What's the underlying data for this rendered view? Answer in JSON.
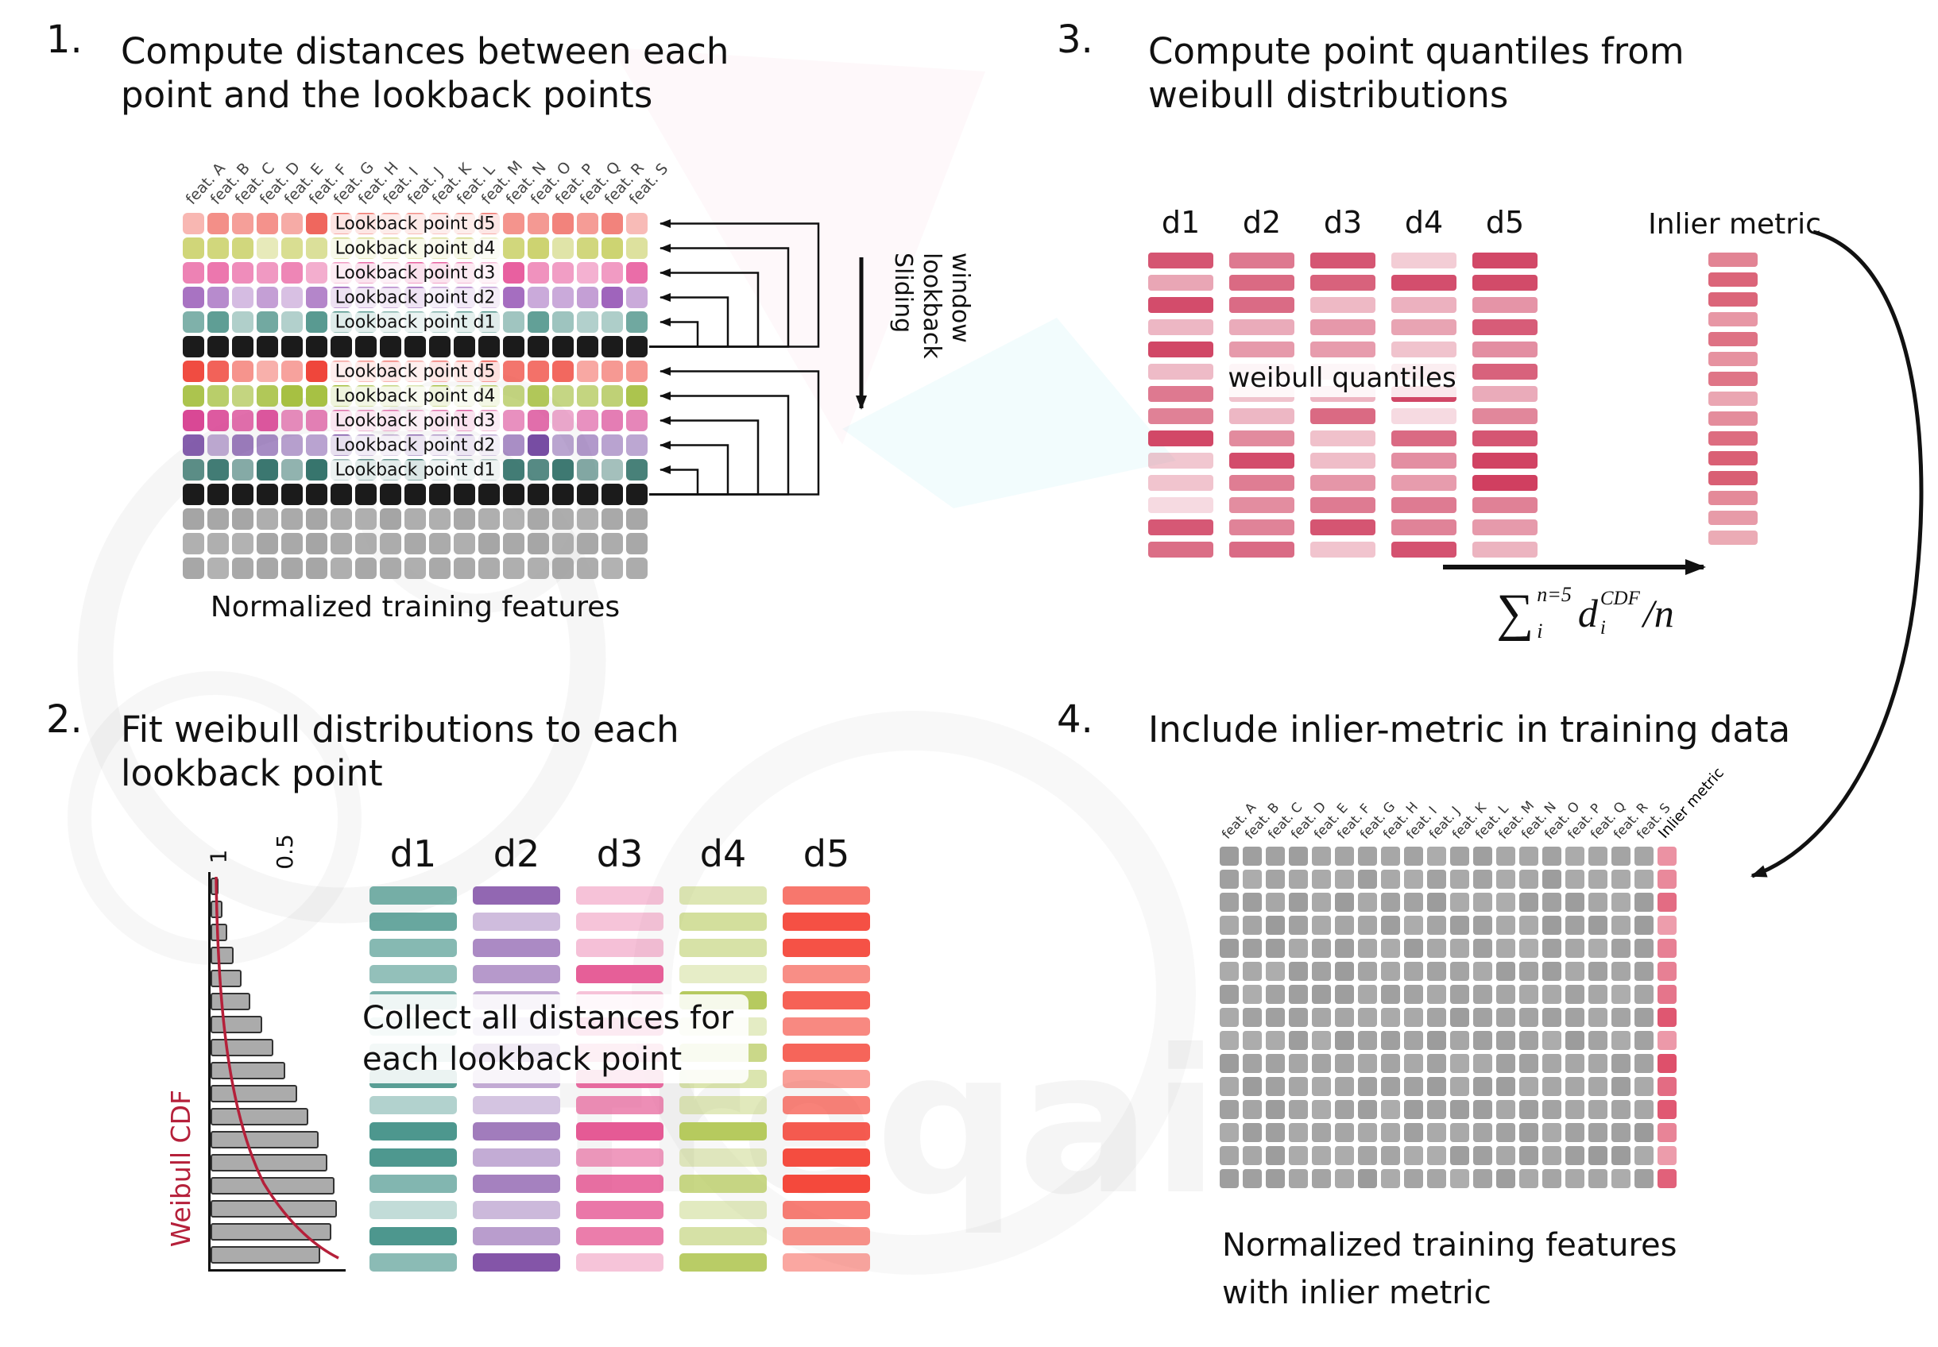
{
  "watermark_text": "freqai",
  "features": [
    "feat. A",
    "feat. B",
    "feat. C",
    "feat. D",
    "feat. E",
    "feat. F",
    "feat. G",
    "feat. H",
    "feat. I",
    "feat. J",
    "feat. K",
    "feat. L",
    "feat. M",
    "feat. N",
    "feat. O",
    "feat. P",
    "feat. Q",
    "feat. R",
    "feat. S"
  ],
  "panel1": {
    "number": "1.",
    "title": "Compute distances between each point and the lookback points",
    "caption": "Normalized training features",
    "sliding_label": "Sliding lookback window",
    "rows": [
      {
        "label": "Lookback point d5",
        "color": "#ee5a50",
        "type": "lookback"
      },
      {
        "label": "Lookback point d4",
        "color": "#c9d066",
        "type": "lookback"
      },
      {
        "label": "Lookback point d3",
        "color": "#e85d9e",
        "type": "lookback"
      },
      {
        "label": "Lookback point d2",
        "color": "#9a5cb8",
        "type": "lookback"
      },
      {
        "label": "Lookback point d1",
        "color": "#4f948a",
        "type": "lookback"
      },
      {
        "label": "",
        "color": "#1b1b1b",
        "type": "current"
      },
      {
        "label": "Lookback point d5",
        "color": "#ef4237",
        "type": "lookback"
      },
      {
        "label": "Lookback point d4",
        "color": "#a2bd38",
        "type": "lookback"
      },
      {
        "label": "Lookback point d3",
        "color": "#d84292",
        "type": "lookback"
      },
      {
        "label": "Lookback point d2",
        "color": "#6d3f9c",
        "type": "lookback"
      },
      {
        "label": "Lookback point d1",
        "color": "#2f6f67",
        "type": "lookback"
      },
      {
        "label": "",
        "color": "#1b1b1b",
        "type": "current"
      },
      {
        "label": "",
        "color": "#a4a4a4",
        "type": "plain"
      },
      {
        "label": "",
        "color": "#a4a4a4",
        "type": "plain"
      },
      {
        "label": "",
        "color": "#a4a4a4",
        "type": "plain"
      }
    ]
  },
  "panel2": {
    "number": "2.",
    "title": "Fit weibull distributions to each lookback point",
    "overlay": "Collect all distances for each lookback point",
    "plot": {
      "ylabel": "Weibull CDF",
      "ticks": [
        "1",
        "0.5"
      ],
      "hist": [
        6,
        9,
        13,
        18,
        24,
        31,
        40,
        49,
        58,
        67,
        76,
        84,
        91,
        96,
        98,
        94,
        85
      ]
    },
    "columns": [
      {
        "label": "d1",
        "color": "#47948a"
      },
      {
        "label": "d2",
        "color": "#7a46a1"
      },
      {
        "label": "d3",
        "color": "#e4518f"
      },
      {
        "label": "d4",
        "color": "#b5c95c"
      },
      {
        "label": "d5",
        "color": "#f4473a"
      }
    ],
    "bars_per_column": 15
  },
  "panel3": {
    "number": "3.",
    "title": "Compute point quantiles from weibull distributions",
    "columns": [
      {
        "label": "d1"
      },
      {
        "label": "d2"
      },
      {
        "label": "d3"
      },
      {
        "label": "d4"
      },
      {
        "label": "d5"
      }
    ],
    "bar_color": "#cf3d5e",
    "overlay": "weibull quantiles",
    "inlier_label": "Inlier metric",
    "inlier_color": "#d95d72",
    "bars_per_column": 14,
    "inlier_bars": 15,
    "formula": {
      "sum": "∑",
      "sum_sup": "n=5",
      "sum_sub": "i",
      "var": "d",
      "var_sup": "CDF",
      "var_sub": "i",
      "div": "/n"
    }
  },
  "panel4": {
    "number": "4.",
    "title": "Include inlier-metric in training data",
    "inlier_header": "Inlier metric",
    "caption_line1": "Normalized training features",
    "caption_line2": "with inlier metric",
    "cell_color": "#9b9b9b",
    "inlier_color": "#dd4a66",
    "rows": 15
  }
}
